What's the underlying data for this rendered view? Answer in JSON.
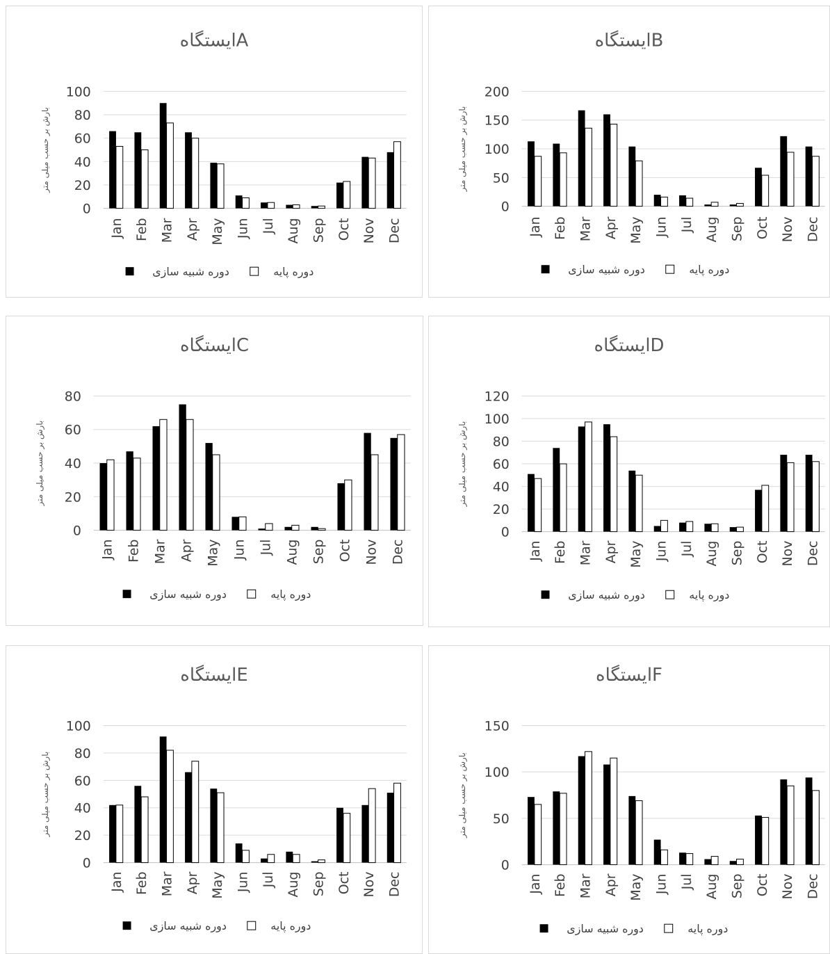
{
  "common": {
    "ylabel": "بارش بر حسب میلی متر",
    "months": [
      "Jan",
      "Feb",
      "Mar",
      "Apr",
      "May",
      "Jun",
      "Jul",
      "Aug",
      "Sep",
      "Oct",
      "Nov",
      "Dec"
    ],
    "series_names": [
      "دوره شبیه سازی",
      "دوره پایه"
    ],
    "colors": {
      "sim": "#000000",
      "base": "#ffffff",
      "outline": "#000000"
    }
  },
  "chart_data": [
    {
      "type": "bar",
      "title": "ایستگاهA",
      "categories": [
        "Jan",
        "Feb",
        "Mar",
        "Apr",
        "May",
        "Jun",
        "Jul",
        "Aug",
        "Sep",
        "Oct",
        "Nov",
        "Dec"
      ],
      "ylim": [
        0,
        100
      ],
      "yticks": [
        0,
        20,
        40,
        60,
        80,
        100
      ],
      "ylabel": "بارش بر حسب میلی متر",
      "series": [
        {
          "name": "دوره شبیه سازی",
          "values": [
            66,
            65,
            90,
            65,
            39,
            11,
            5,
            3,
            2,
            22,
            44,
            48
          ]
        },
        {
          "name": "دوره پایه",
          "values": [
            53,
            50,
            73,
            60,
            38,
            9,
            5,
            3,
            2,
            23,
            43,
            57
          ]
        }
      ],
      "legend": "bottom",
      "grid": true
    },
    {
      "type": "bar",
      "title": "ایستگاهB",
      "categories": [
        "Jan",
        "Feb",
        "Mar",
        "Apr",
        "May",
        "Jun",
        "Jul",
        "Aug",
        "Sep",
        "Oct",
        "Nov",
        "Dec"
      ],
      "ylim": [
        0,
        200
      ],
      "yticks": [
        0,
        50,
        100,
        150,
        200
      ],
      "ylabel": "بارش بر حسب میلی متر",
      "series": [
        {
          "name": "دوره شبیه سازی",
          "values": [
            113,
            109,
            167,
            160,
            104,
            20,
            19,
            3,
            3,
            67,
            122,
            104
          ]
        },
        {
          "name": "دوره پایه",
          "values": [
            87,
            93,
            136,
            143,
            79,
            16,
            14,
            7,
            5,
            54,
            94,
            87
          ]
        }
      ],
      "legend": "bottom",
      "grid": true
    },
    {
      "type": "bar",
      "title": "ایستگاهC",
      "categories": [
        "Jan",
        "Feb",
        "Mar",
        "Apr",
        "May",
        "Jun",
        "Jul",
        "Aug",
        "Sep",
        "Oct",
        "Nov",
        "Dec"
      ],
      "ylim": [
        0,
        80
      ],
      "yticks": [
        0,
        20,
        40,
        60,
        80
      ],
      "ylabel": "بارش بر حسب میلی متر",
      "series": [
        {
          "name": "دوره شبیه سازی",
          "values": [
            40,
            47,
            62,
            75,
            52,
            8,
            1,
            2,
            2,
            28,
            58,
            55
          ]
        },
        {
          "name": "دوره پایه",
          "values": [
            42,
            43,
            66,
            66,
            45,
            8,
            4,
            3,
            1,
            30,
            45,
            57
          ]
        }
      ],
      "legend": "bottom",
      "grid": true
    },
    {
      "type": "bar",
      "title": "ایستگاهD",
      "categories": [
        "Jan",
        "Feb",
        "Mar",
        "Apr",
        "May",
        "Jun",
        "Jul",
        "Aug",
        "Sep",
        "Oct",
        "Nov",
        "Dec"
      ],
      "ylim": [
        0,
        120
      ],
      "yticks": [
        0,
        20,
        40,
        60,
        80,
        100,
        120
      ],
      "ylabel": "بارش بر حسب میلی متر",
      "series": [
        {
          "name": "دوره شبیه سازی",
          "values": [
            51,
            74,
            93,
            95,
            54,
            5,
            8,
            7,
            4,
            37,
            68,
            68
          ]
        },
        {
          "name": "دوره پایه",
          "values": [
            47,
            60,
            97,
            84,
            50,
            10,
            9,
            7,
            4,
            41,
            61,
            62
          ]
        }
      ],
      "legend": "bottom",
      "grid": true
    },
    {
      "type": "bar",
      "title": "ایستگاهE",
      "categories": [
        "Jan",
        "Feb",
        "Mar",
        "Apr",
        "May",
        "Jun",
        "Jul",
        "Aug",
        "Sep",
        "Oct",
        "Nov",
        "Dec"
      ],
      "ylim": [
        0,
        100
      ],
      "yticks": [
        0,
        20,
        40,
        60,
        80,
        100
      ],
      "ylabel": "بارش بر حسب میلی متر",
      "series": [
        {
          "name": "دوره شبیه سازی",
          "values": [
            42,
            56,
            92,
            66,
            54,
            14,
            3,
            8,
            1,
            40,
            42,
            51
          ]
        },
        {
          "name": "دوره پایه",
          "values": [
            42,
            48,
            82,
            74,
            51,
            9,
            6,
            6,
            2,
            36,
            54,
            58
          ]
        }
      ],
      "legend": "bottom",
      "grid": true
    },
    {
      "type": "bar",
      "title": "ایستگاهF",
      "categories": [
        "Jan",
        "Feb",
        "Mar",
        "Apr",
        "May",
        "Jun",
        "Jul",
        "Aug",
        "Sep",
        "Oct",
        "Nov",
        "Dec"
      ],
      "ylim": [
        0,
        150
      ],
      "yticks": [
        0,
        50,
        100,
        150
      ],
      "ylabel": "بارش بر حسب میلی متر",
      "series": [
        {
          "name": "دوره شبیه سازی",
          "values": [
            73,
            79,
            117,
            108,
            74,
            27,
            13,
            6,
            4,
            53,
            92,
            94
          ]
        },
        {
          "name": "دوره پایه",
          "values": [
            65,
            77,
            122,
            115,
            69,
            16,
            12,
            9,
            6,
            51,
            85,
            80
          ]
        }
      ],
      "legend": "bottom",
      "grid": true
    }
  ]
}
